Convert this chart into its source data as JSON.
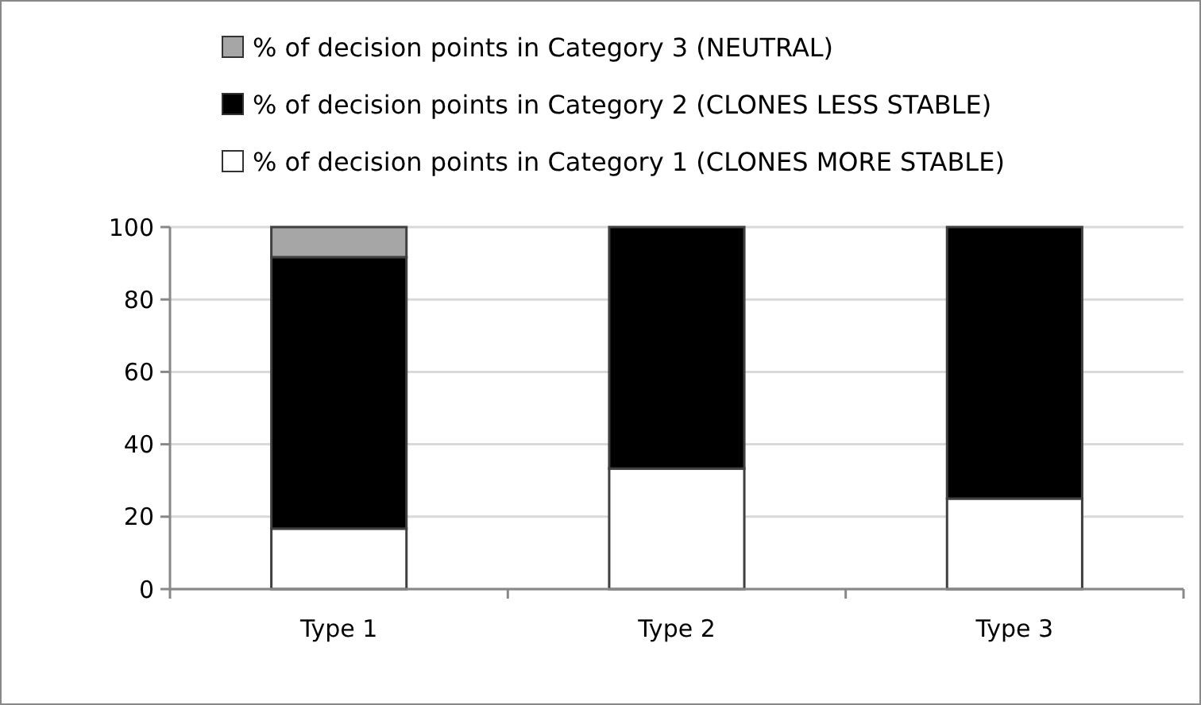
{
  "chart_data": {
    "type": "bar",
    "stacked": true,
    "categories": [
      "Type 1",
      "Type 2",
      "Type 3"
    ],
    "series": [
      {
        "name": "% of decision points in Category 1 (CLONES MORE STABLE)",
        "color": "#ffffff",
        "values": [
          16.7,
          33.3,
          25
        ]
      },
      {
        "name": "% of decision points in Category 2 (CLONES LESS STABLE)",
        "color": "#000000",
        "values": [
          75,
          66.7,
          75
        ]
      },
      {
        "name": "% of decision points in Category 3 (NEUTRAL)",
        "color": "#a6a6a6",
        "values": [
          8.3,
          0,
          0
        ]
      }
    ],
    "ylim": [
      0,
      100
    ],
    "yticks": [
      0,
      20,
      40,
      60,
      80,
      100
    ],
    "grid": "y",
    "legend": "top"
  }
}
